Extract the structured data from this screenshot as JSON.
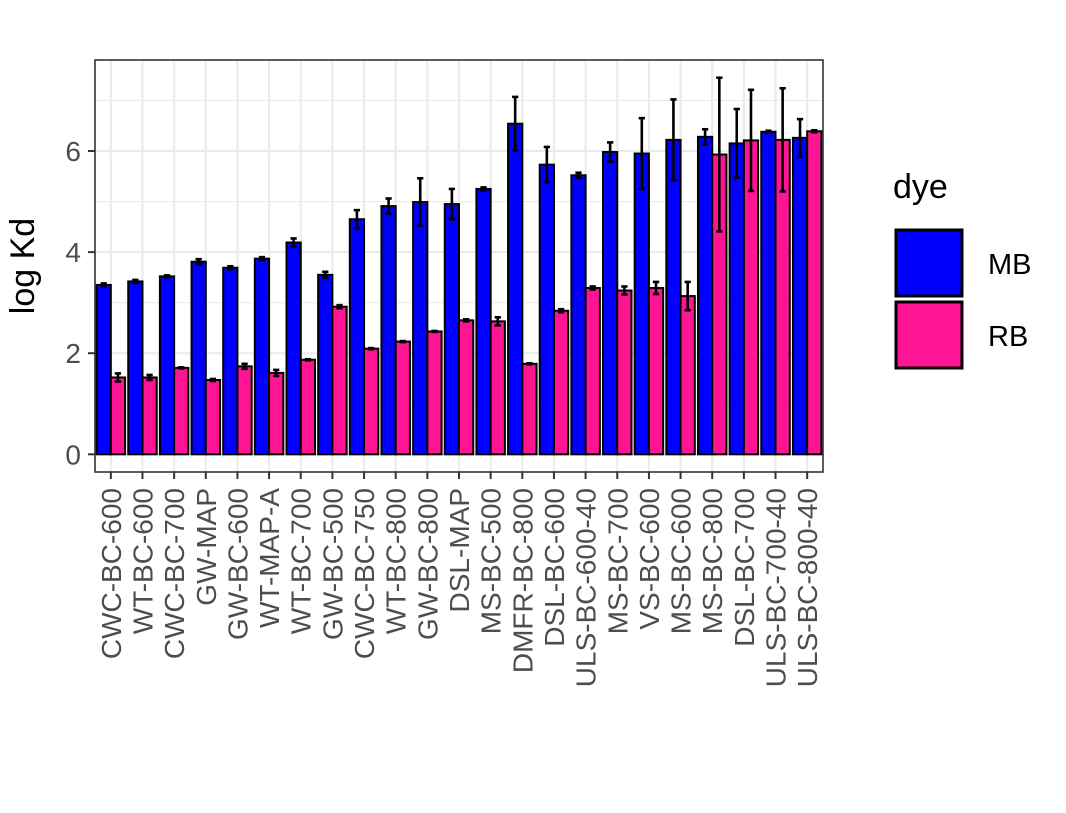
{
  "chart_data": {
    "type": "bar",
    "title": "",
    "xlabel": "",
    "ylabel": "log Kd",
    "ylim": [
      -0.35,
      7.8
    ],
    "yticks": [
      0,
      2,
      4,
      6
    ],
    "grid": true,
    "legend": {
      "title": "dye",
      "position": "right"
    },
    "categories": [
      "CWC-BC-600",
      "WT-BC-600",
      "CWC-BC-700",
      "GW-MAP",
      "GW-BC-600",
      "WT-MAP-A",
      "WT-BC-700",
      "GW-BC-500",
      "CWC-BC-750",
      "WT-BC-800",
      "GW-BC-800",
      "DSL-MAP",
      "MS-BC-500",
      "DMFR-BC-800",
      "DSL-BC-600",
      "ULS-BC-600-40",
      "MS-BC-700",
      "VS-BC-600",
      "MS-BC-600",
      "MS-BC-800",
      "DSL-BC-700",
      "ULS-BC-700-40",
      "ULS-BC-800-40"
    ],
    "series": [
      {
        "name": "MB",
        "color": "#0000ff",
        "values": [
          3.35,
          3.42,
          3.52,
          3.81,
          3.69,
          3.87,
          4.19,
          3.55,
          4.65,
          4.91,
          4.99,
          4.95,
          5.25,
          6.54,
          5.73,
          5.52,
          5.98,
          5.95,
          6.22,
          6.28,
          6.15,
          6.38,
          6.26
        ],
        "errors": [
          0.03,
          0.03,
          0.02,
          0.05,
          0.03,
          0.03,
          0.08,
          0.06,
          0.18,
          0.15,
          0.47,
          0.3,
          0.03,
          0.53,
          0.35,
          0.05,
          0.19,
          0.7,
          0.8,
          0.15,
          0.68,
          0.02,
          0.37
        ]
      },
      {
        "name": "RB",
        "color": "#ff1493",
        "values": [
          1.52,
          1.52,
          1.71,
          1.47,
          1.74,
          1.61,
          1.87,
          2.92,
          2.09,
          2.23,
          2.43,
          2.65,
          2.63,
          1.79,
          2.84,
          3.29,
          3.24,
          3.29,
          3.13,
          5.93,
          6.21,
          6.22,
          6.39
        ],
        "errors": [
          0.08,
          0.05,
          0.01,
          0.02,
          0.05,
          0.06,
          0.01,
          0.03,
          0.01,
          0.01,
          0.01,
          0.02,
          0.08,
          0.01,
          0.03,
          0.03,
          0.08,
          0.12,
          0.28,
          1.52,
          1.0,
          1.02,
          0.02
        ]
      }
    ]
  }
}
